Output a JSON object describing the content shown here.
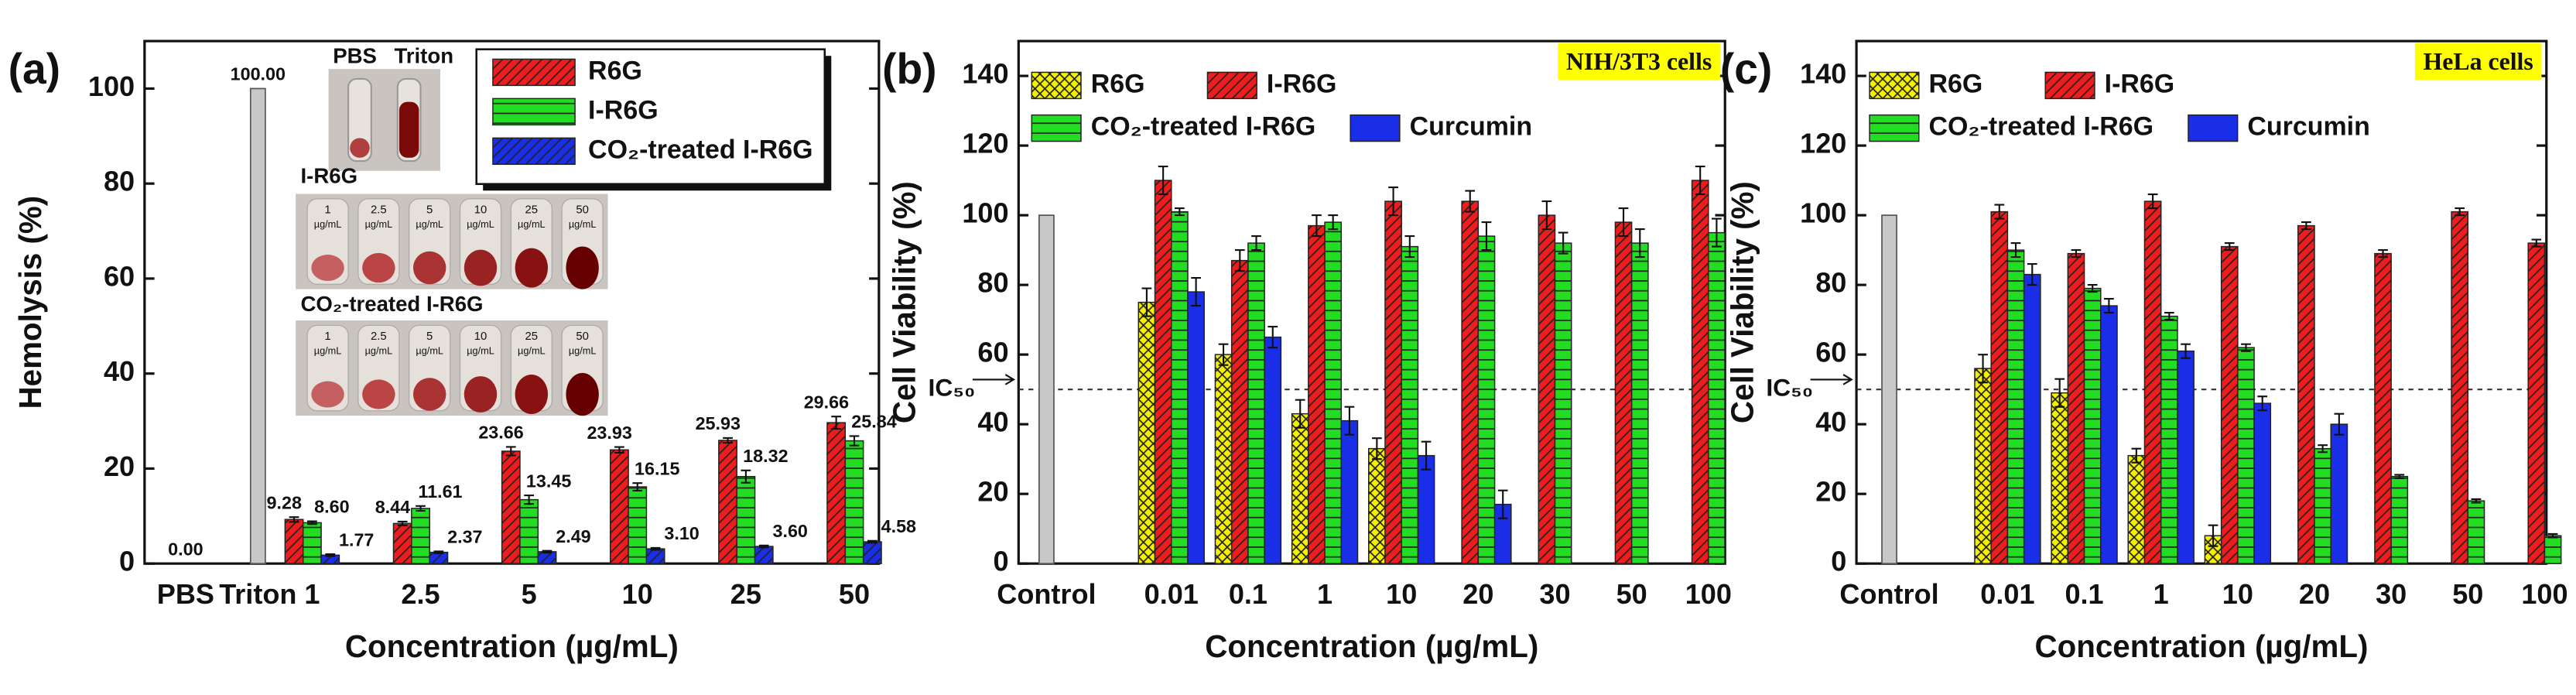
{
  "chart_data": [
    {
      "type": "bar",
      "panel_label": "(a)",
      "ylabel": "Hemolysis (%)",
      "xlabel": "Concentration (µg/mL)",
      "ylim": [
        0,
        110
      ],
      "yticks": [
        0,
        20,
        40,
        60,
        80,
        100
      ],
      "control": {
        "categories": [
          "PBS",
          "Triton"
        ],
        "values": [
          0,
          100
        ],
        "value_labels": [
          "0.00",
          "100.00"
        ],
        "color": "#c8c8c8"
      },
      "categories": [
        "1",
        "2.5",
        "5",
        "10",
        "25",
        "50"
      ],
      "series": [
        {
          "name": "R6G",
          "color": "#ee1c1c",
          "hatch": "diagonal",
          "values": [
            9.28,
            8.44,
            23.66,
            23.93,
            25.93,
            29.66
          ],
          "value_labels": [
            "9.28",
            "8.44",
            "23.66",
            "23.93",
            "25.93",
            "29.66"
          ],
          "errors": [
            0.5,
            0.4,
            0.9,
            0.6,
            0.5,
            1.3
          ]
        },
        {
          "name": "I-R6G",
          "color": "#22dd22",
          "hatch": "horizontal",
          "values": [
            8.6,
            11.61,
            13.45,
            16.15,
            18.32,
            25.84
          ],
          "value_labels": [
            "8.60",
            "11.61",
            "13.45",
            "16.15",
            "18.32",
            "25.84"
          ],
          "errors": [
            0.3,
            0.5,
            0.9,
            0.8,
            1.3,
            1.0
          ]
        },
        {
          "name": "CO₂-treated I-R6G",
          "color": "#1a2ee8",
          "hatch": "diagonal",
          "values": [
            1.77,
            2.37,
            2.49,
            3.1,
            3.6,
            4.58
          ],
          "value_labels": [
            "1.77",
            "2.37",
            "2.49",
            "3.10",
            "3.60",
            "4.58"
          ],
          "errors": [
            0.2,
            0.2,
            0.2,
            0.2,
            0.2,
            0.2
          ]
        }
      ],
      "inset": {
        "top_labels": [
          "PBS",
          "Triton"
        ],
        "row_labels": [
          "I-R6G",
          "CO₂-treated I-R6G"
        ],
        "tube_labels": [
          "1",
          "2.5",
          "5",
          "10",
          "25",
          "50"
        ],
        "tube_unit": "µg/mL"
      }
    },
    {
      "type": "bar",
      "panel_label": "(b)",
      "ylabel": "Cell Viability (%)",
      "xlabel": "Concentration (µg/mL)",
      "ylim": [
        0,
        150
      ],
      "yticks": [
        0,
        20,
        40,
        60,
        80,
        100,
        120,
        140
      ],
      "badge": "NIH/3T3 cells",
      "ref": {
        "value": 50,
        "label": "IC₅₀"
      },
      "control": {
        "categories": [
          "Control"
        ],
        "values": [
          100
        ],
        "color": "#c8c8c8"
      },
      "categories": [
        "0.01",
        "0.1",
        "1",
        "10",
        "20",
        "30",
        "50",
        "100"
      ],
      "series": [
        {
          "name": "R6G",
          "color": "#f4f000",
          "hatch": "cross",
          "values": [
            75,
            60,
            43,
            33,
            null,
            null,
            null,
            null
          ],
          "errors": [
            4,
            3,
            4,
            3,
            null,
            null,
            null,
            null
          ]
        },
        {
          "name": "I-R6G",
          "color": "#ee1c1c",
          "hatch": "diagonal",
          "values": [
            110,
            87,
            97,
            104,
            104,
            100,
            98,
            110
          ],
          "errors": [
            4,
            3,
            3,
            4,
            3,
            4,
            4,
            4
          ]
        },
        {
          "name": "CO₂-treated I-R6G",
          "color": "#22dd22",
          "hatch": "horizontal",
          "values": [
            101,
            92,
            98,
            91,
            94,
            92,
            92,
            95
          ],
          "errors": [
            1,
            2,
            2,
            3,
            4,
            3,
            4,
            4
          ]
        },
        {
          "name": "Curcumin",
          "color": "#1a2ee8",
          "hatch": "none",
          "values": [
            78,
            65,
            41,
            31,
            17,
            null,
            null,
            null
          ],
          "errors": [
            4,
            3,
            4,
            4,
            4,
            null,
            null,
            null
          ]
        }
      ]
    },
    {
      "type": "bar",
      "panel_label": "(c)",
      "ylabel": "Cell Viability (%)",
      "xlabel": "Concentration (µg/mL)",
      "ylim": [
        0,
        150
      ],
      "yticks": [
        0,
        20,
        40,
        60,
        80,
        100,
        120,
        140
      ],
      "badge": "HeLa cells",
      "ref": {
        "value": 50,
        "label": "IC₅₀"
      },
      "control": {
        "categories": [
          "Control"
        ],
        "values": [
          100
        ],
        "color": "#c8c8c8"
      },
      "categories": [
        "0.01",
        "0.1",
        "1",
        "10",
        "20",
        "30",
        "50",
        "100"
      ],
      "series": [
        {
          "name": "R6G",
          "color": "#f4f000",
          "hatch": "cross",
          "values": [
            56,
            49,
            31,
            8,
            null,
            null,
            null,
            null
          ],
          "errors": [
            4,
            4,
            2,
            3,
            null,
            null,
            null,
            null
          ]
        },
        {
          "name": "I-R6G",
          "color": "#ee1c1c",
          "hatch": "diagonal",
          "values": [
            101,
            89,
            104,
            91,
            97,
            89,
            101,
            92
          ],
          "errors": [
            2,
            1,
            2,
            1,
            1,
            1,
            1,
            1
          ]
        },
        {
          "name": "CO₂-treated I-R6G",
          "color": "#22dd22",
          "hatch": "horizontal",
          "values": [
            90,
            79,
            71,
            62,
            33,
            25,
            18,
            8
          ],
          "errors": [
            2,
            1,
            1,
            1,
            1,
            0.5,
            0.5,
            0.5
          ]
        },
        {
          "name": "Curcumin",
          "color": "#1a2ee8",
          "hatch": "none",
          "values": [
            83,
            74,
            61,
            46,
            40,
            null,
            null,
            null
          ],
          "errors": [
            3,
            2,
            2,
            2,
            3,
            null,
            null,
            null
          ]
        }
      ]
    }
  ]
}
